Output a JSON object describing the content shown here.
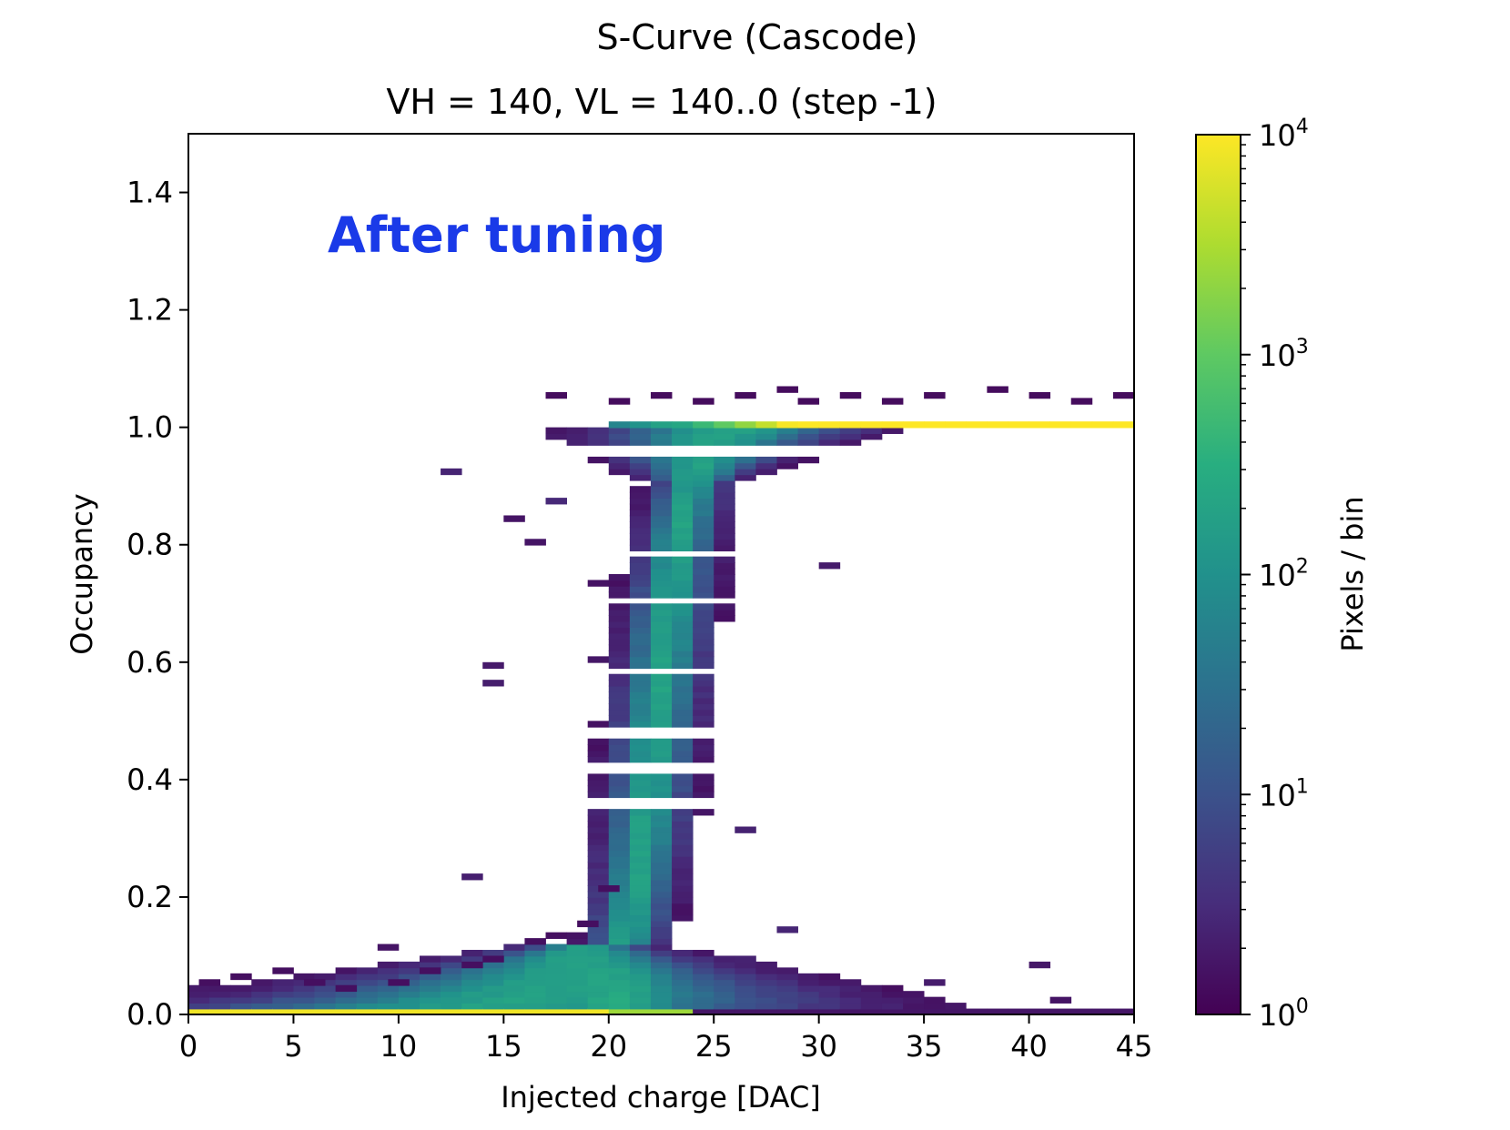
{
  "chart_data": {
    "type": "heatmap",
    "title": "S-Curve (Cascode)",
    "subtitle": "VH = 140, VL = 140..0 (step -1)",
    "xlabel": "Injected charge [DAC]",
    "ylabel": "Occupancy",
    "xlim": [
      0,
      45
    ],
    "ylim": [
      0,
      1.5
    ],
    "x_ticks": [
      "0",
      "5",
      "10",
      "15",
      "20",
      "25",
      "30",
      "35",
      "40",
      "45"
    ],
    "y_ticks": [
      "0.0",
      "0.2",
      "0.4",
      "0.6",
      "0.8",
      "1.0",
      "1.2",
      "1.4"
    ],
    "x_tick_values": [
      0,
      5,
      10,
      15,
      20,
      25,
      30,
      35,
      40,
      45
    ],
    "y_tick_values": [
      0,
      0.2,
      0.4,
      0.6,
      0.8,
      1.0,
      1.2,
      1.4
    ],
    "colorbar": {
      "label": "Pixels / bin",
      "scale": "log",
      "range": [
        1,
        10000
      ],
      "colormap": "viridis",
      "tick_values": [
        1,
        10,
        100,
        1000,
        10000
      ],
      "tick_labels": [
        {
          "base": "10",
          "exp": "0"
        },
        {
          "base": "10",
          "exp": "1"
        },
        {
          "base": "10",
          "exp": "2"
        },
        {
          "base": "10",
          "exp": "3"
        },
        {
          "base": "10",
          "exp": "4"
        }
      ]
    },
    "annotation": {
      "text": "After tuning",
      "color": "#1a3ae8",
      "x": 6.5,
      "y": 1.33
    },
    "grid": false
  }
}
